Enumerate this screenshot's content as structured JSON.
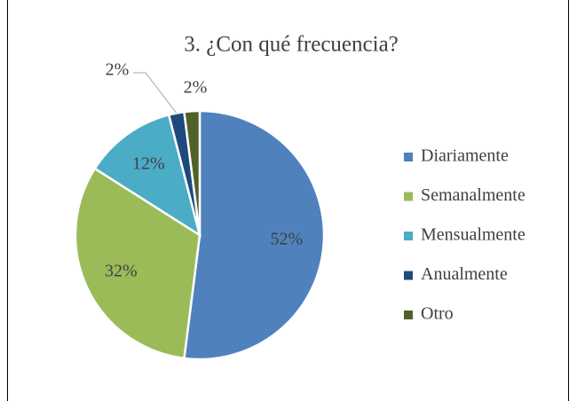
{
  "chart_data": {
    "type": "pie",
    "title": "3. ¿Con qué frecuencia?",
    "categories": [
      "Diariamente",
      "Semanalmente",
      "Mensualmente",
      "Anualmente",
      "Otro"
    ],
    "values": [
      52,
      32,
      12,
      2,
      2
    ],
    "value_labels": [
      "52%",
      "32%",
      "12%",
      "2%",
      "2%"
    ],
    "colors": [
      "#4f81bd",
      "#9bbb59",
      "#4bacc6",
      "#1f497d",
      "#4f6228"
    ],
    "legend": "right"
  }
}
